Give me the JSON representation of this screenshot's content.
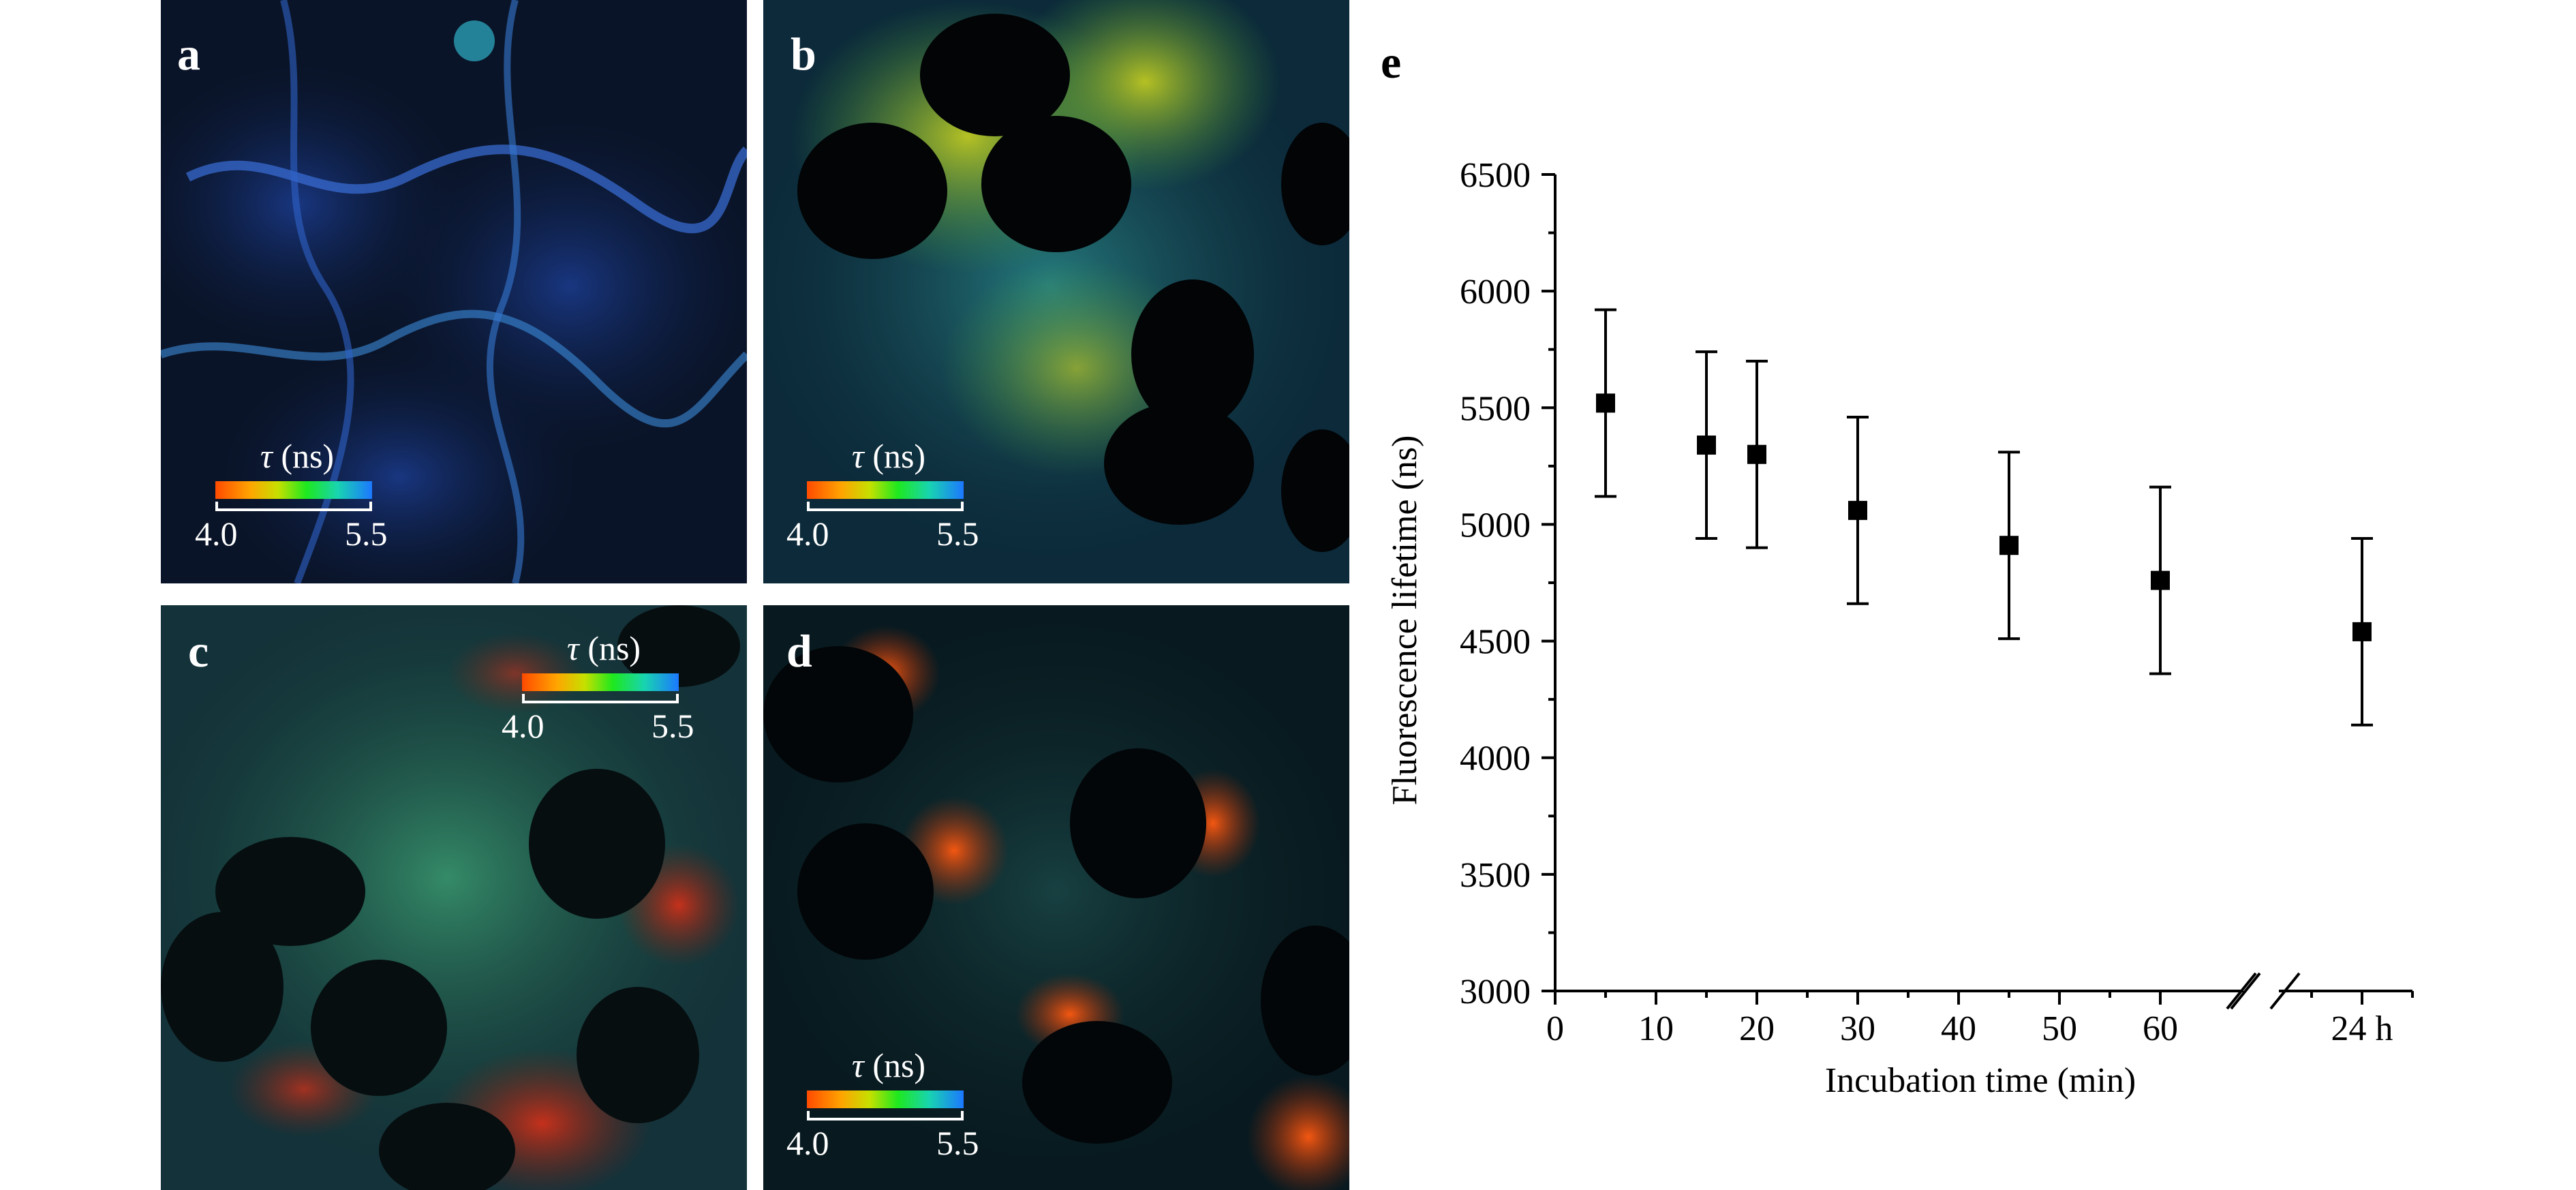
{
  "panels": [
    {
      "label": "a",
      "colorbar": {
        "symbol": "τ",
        "unit": "(ns)",
        "min": "4.0",
        "max": "5.5"
      }
    },
    {
      "label": "b",
      "colorbar": {
        "symbol": "τ",
        "unit": "(ns)",
        "min": "4.0",
        "max": "5.5"
      }
    },
    {
      "label": "c",
      "colorbar": {
        "symbol": "τ",
        "unit": "(ns)",
        "min": "4.0",
        "max": "5.5"
      }
    },
    {
      "label": "d",
      "colorbar": {
        "symbol": "τ",
        "unit": "(ns)",
        "min": "4.0",
        "max": "5.5"
      }
    }
  ],
  "chart_data": {
    "panel_label": "e",
    "type": "scatter",
    "xlabel": "Incubation time (min)",
    "ylabel": "Fluorescence lifetime (ns)",
    "ylim": [
      3000,
      6500
    ],
    "yticks": [
      "3000",
      "3500",
      "4000",
      "4500",
      "5000",
      "5500",
      "6000",
      "6500"
    ],
    "xlim": [
      0,
      85
    ],
    "xticks": [
      "0",
      "10",
      "20",
      "30",
      "40",
      "50",
      "60",
      "24 h"
    ],
    "x_axis_break_after": 60,
    "series": [
      {
        "x": [
          "5",
          "15",
          "20",
          "30",
          "45",
          "60",
          "24 h"
        ],
        "y": [
          5520,
          5340,
          5300,
          5060,
          4910,
          4760,
          4540
        ],
        "error": [
          400,
          400,
          400,
          400,
          400,
          400,
          400
        ]
      }
    ],
    "marker": "square",
    "color": "#000000"
  }
}
